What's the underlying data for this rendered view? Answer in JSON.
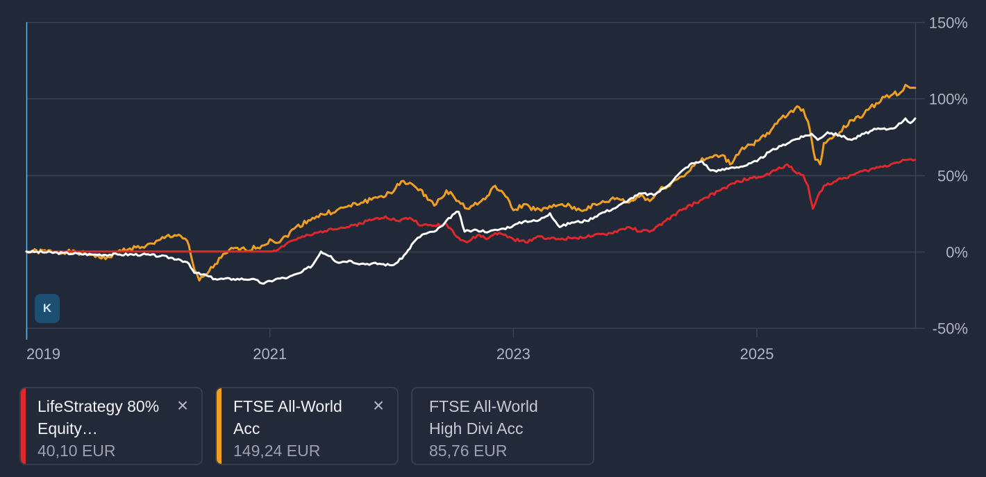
{
  "chart_data": {
    "type": "line",
    "y_axis": {
      "ticks": [
        150,
        100,
        50,
        0,
        -50
      ],
      "labels": [
        "150%",
        "100%",
        "50%",
        "0%",
        "-50%"
      ],
      "ylim": [
        -50,
        150
      ],
      "position": "right"
    },
    "x_axis": {
      "labels": [
        "2019",
        "2021",
        "2023",
        "2025"
      ],
      "xlim": [
        2019.0,
        2026.3
      ]
    },
    "grid": true,
    "series": [
      {
        "name": "FTSE All-World Acc",
        "color": "#f0a01e",
        "points": [
          [
            2019.0,
            0
          ],
          [
            2019.3,
            0
          ],
          [
            2019.55,
            -2
          ],
          [
            2019.65,
            -5
          ],
          [
            2019.75,
            0
          ],
          [
            2019.85,
            2
          ],
          [
            2019.95,
            3
          ],
          [
            2020.05,
            5
          ],
          [
            2020.15,
            10
          ],
          [
            2020.25,
            11
          ],
          [
            2020.32,
            7
          ],
          [
            2020.38,
            -12
          ],
          [
            2020.42,
            -19
          ],
          [
            2020.5,
            -13
          ],
          [
            2020.6,
            -4
          ],
          [
            2020.7,
            2
          ],
          [
            2020.8,
            1
          ],
          [
            2020.95,
            4
          ],
          [
            2021.0,
            8
          ],
          [
            2021.08,
            6
          ],
          [
            2021.2,
            15
          ],
          [
            2021.35,
            22
          ],
          [
            2021.55,
            27
          ],
          [
            2021.75,
            32
          ],
          [
            2021.9,
            36
          ],
          [
            2022.0,
            38
          ],
          [
            2022.08,
            46
          ],
          [
            2022.15,
            45
          ],
          [
            2022.22,
            40
          ],
          [
            2022.28,
            37
          ],
          [
            2022.35,
            30
          ],
          [
            2022.45,
            40
          ],
          [
            2022.55,
            33
          ],
          [
            2022.62,
            28
          ],
          [
            2022.72,
            32
          ],
          [
            2022.8,
            37
          ],
          [
            2022.85,
            43
          ],
          [
            2022.92,
            38
          ],
          [
            2023.0,
            27
          ],
          [
            2023.1,
            31
          ],
          [
            2023.18,
            27
          ],
          [
            2023.28,
            28
          ],
          [
            2023.4,
            31
          ],
          [
            2023.55,
            27
          ],
          [
            2023.7,
            31
          ],
          [
            2023.85,
            35
          ],
          [
            2023.95,
            32
          ],
          [
            2024.05,
            37
          ],
          [
            2024.12,
            33
          ],
          [
            2024.2,
            40
          ],
          [
            2024.3,
            45
          ],
          [
            2024.42,
            51
          ],
          [
            2024.5,
            58
          ],
          [
            2024.6,
            61
          ],
          [
            2024.72,
            63
          ],
          [
            2024.78,
            57
          ],
          [
            2024.88,
            68
          ],
          [
            2024.96,
            70
          ],
          [
            2025.02,
            73
          ],
          [
            2025.1,
            77
          ],
          [
            2025.18,
            86
          ],
          [
            2025.25,
            89
          ],
          [
            2025.33,
            95
          ],
          [
            2025.38,
            93
          ],
          [
            2025.42,
            85
          ],
          [
            2025.48,
            60
          ],
          [
            2025.52,
            57
          ],
          [
            2025.55,
            71
          ],
          [
            2025.6,
            74
          ],
          [
            2025.68,
            78
          ],
          [
            2025.78,
            86
          ],
          [
            2025.88,
            90
          ],
          [
            2025.98,
            97
          ],
          [
            2026.05,
            101
          ],
          [
            2026.12,
            103
          ],
          [
            2026.18,
            104
          ],
          [
            2026.22,
            109
          ],
          [
            2026.26,
            107
          ],
          [
            2026.3,
            107
          ]
        ]
      },
      {
        "name": "LifeStrategy 80% Equity…",
        "color": "#e0282c",
        "points": [
          [
            2019.0,
            0
          ],
          [
            2020.95,
            0
          ],
          [
            2021.0,
            0
          ],
          [
            2021.08,
            2
          ],
          [
            2021.15,
            6
          ],
          [
            2021.25,
            9
          ],
          [
            2021.35,
            11
          ],
          [
            2021.5,
            15
          ],
          [
            2021.65,
            16
          ],
          [
            2021.8,
            20
          ],
          [
            2021.95,
            23
          ],
          [
            2022.05,
            20
          ],
          [
            2022.15,
            22
          ],
          [
            2022.25,
            17
          ],
          [
            2022.35,
            17
          ],
          [
            2022.45,
            18
          ],
          [
            2022.55,
            9
          ],
          [
            2022.62,
            6
          ],
          [
            2022.72,
            11
          ],
          [
            2022.78,
            8
          ],
          [
            2022.85,
            12
          ],
          [
            2022.92,
            11
          ],
          [
            2023.0,
            8
          ],
          [
            2023.1,
            6
          ],
          [
            2023.2,
            10
          ],
          [
            2023.35,
            8
          ],
          [
            2023.5,
            9
          ],
          [
            2023.65,
            10
          ],
          [
            2023.8,
            12
          ],
          [
            2023.95,
            16
          ],
          [
            2024.05,
            13
          ],
          [
            2024.15,
            14
          ],
          [
            2024.25,
            20
          ],
          [
            2024.4,
            28
          ],
          [
            2024.55,
            34
          ],
          [
            2024.7,
            40
          ],
          [
            2024.85,
            46
          ],
          [
            2024.96,
            48
          ],
          [
            2025.05,
            49
          ],
          [
            2025.15,
            53
          ],
          [
            2025.25,
            57
          ],
          [
            2025.33,
            51
          ],
          [
            2025.38,
            50
          ],
          [
            2025.42,
            43
          ],
          [
            2025.46,
            28
          ],
          [
            2025.5,
            36
          ],
          [
            2025.55,
            43
          ],
          [
            2025.65,
            46
          ],
          [
            2025.78,
            50
          ],
          [
            2025.9,
            53
          ],
          [
            2026.0,
            55
          ],
          [
            2026.1,
            57
          ],
          [
            2026.2,
            60
          ],
          [
            2026.3,
            60
          ]
        ]
      },
      {
        "name": "FTSE All-World High Divi Acc",
        "color": "#ffffff",
        "points": [
          [
            2019.0,
            0
          ],
          [
            2019.3,
            -1
          ],
          [
            2019.55,
            -2
          ],
          [
            2019.75,
            -2
          ],
          [
            2019.95,
            -2
          ],
          [
            2020.1,
            -3
          ],
          [
            2020.25,
            -5
          ],
          [
            2020.32,
            -7
          ],
          [
            2020.38,
            -14
          ],
          [
            2020.45,
            -15
          ],
          [
            2020.55,
            -18
          ],
          [
            2020.7,
            -18
          ],
          [
            2020.85,
            -18
          ],
          [
            2020.95,
            -21
          ],
          [
            2021.05,
            -18
          ],
          [
            2021.15,
            -17
          ],
          [
            2021.25,
            -14
          ],
          [
            2021.35,
            -9
          ],
          [
            2021.42,
            0
          ],
          [
            2021.5,
            -3
          ],
          [
            2021.55,
            -7
          ],
          [
            2021.65,
            -6
          ],
          [
            2021.75,
            -8
          ],
          [
            2021.9,
            -8
          ],
          [
            2022.0,
            -9
          ],
          [
            2022.05,
            -7
          ],
          [
            2022.12,
            -1
          ],
          [
            2022.18,
            6
          ],
          [
            2022.25,
            11
          ],
          [
            2022.35,
            13
          ],
          [
            2022.42,
            17
          ],
          [
            2022.5,
            24
          ],
          [
            2022.55,
            26
          ],
          [
            2022.6,
            13
          ],
          [
            2022.7,
            14
          ],
          [
            2022.8,
            13
          ],
          [
            2022.92,
            15
          ],
          [
            2023.0,
            17
          ],
          [
            2023.1,
            20
          ],
          [
            2023.2,
            20
          ],
          [
            2023.3,
            25
          ],
          [
            2023.38,
            16
          ],
          [
            2023.48,
            19
          ],
          [
            2023.6,
            20
          ],
          [
            2023.72,
            25
          ],
          [
            2023.85,
            29
          ],
          [
            2023.95,
            34
          ],
          [
            2024.05,
            38
          ],
          [
            2024.15,
            37
          ],
          [
            2024.25,
            42
          ],
          [
            2024.35,
            50
          ],
          [
            2024.45,
            57
          ],
          [
            2024.55,
            59
          ],
          [
            2024.62,
            53
          ],
          [
            2024.7,
            53
          ],
          [
            2024.8,
            55
          ],
          [
            2024.9,
            56
          ],
          [
            2025.0,
            59
          ],
          [
            2025.1,
            65
          ],
          [
            2025.2,
            69
          ],
          [
            2025.3,
            73
          ],
          [
            2025.38,
            75
          ],
          [
            2025.45,
            77
          ],
          [
            2025.5,
            73
          ],
          [
            2025.58,
            78
          ],
          [
            2025.68,
            76
          ],
          [
            2025.78,
            73
          ],
          [
            2025.88,
            77
          ],
          [
            2025.98,
            80
          ],
          [
            2026.08,
            80
          ],
          [
            2026.15,
            82
          ],
          [
            2026.22,
            87
          ],
          [
            2026.26,
            84
          ],
          [
            2026.3,
            87
          ]
        ]
      }
    ]
  },
  "marker_label": "K",
  "legend": [
    {
      "name": "LifeStrategy 80% Equity…",
      "price": "40,10 EUR",
      "color": "#e0282c",
      "active": true,
      "close": "×"
    },
    {
      "name": "FTSE All-World Acc",
      "price": "149,24 EUR",
      "color": "#f0a01e",
      "active": true,
      "close": "×"
    },
    {
      "name": "FTSE All-World High Divi Acc",
      "price": "85,76 EUR",
      "color": "",
      "active": false,
      "close": ""
    }
  ]
}
